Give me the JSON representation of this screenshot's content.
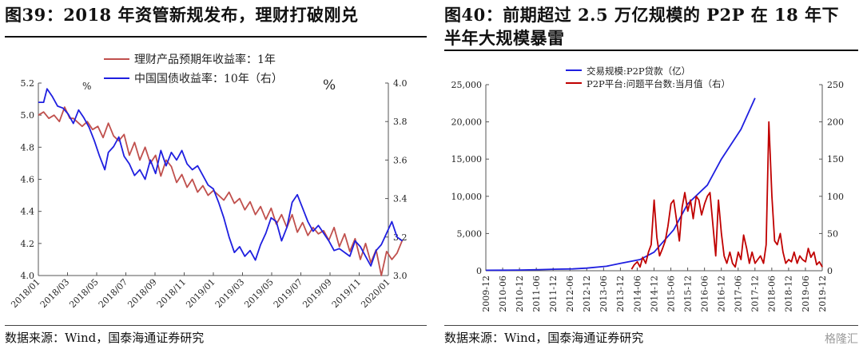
{
  "left": {
    "title": "图39：2018 年资管新规发布，理财打破刚兑",
    "source": "数据来源：Wind，国泰海通证券研究",
    "chart_data": {
      "type": "line",
      "x_tick_labels": [
        "2018/01",
        "2018/03",
        "2018/05",
        "2018/07",
        "2018/09",
        "2018/11",
        "2019/01",
        "2019/03",
        "2019/05",
        "2019/07",
        "2019/09",
        "2019/11",
        "2020/01"
      ],
      "y_left_ticks": [
        "4.0",
        "4.2",
        "4.4",
        "4.6",
        "4.8",
        "5.0",
        "5.2"
      ],
      "y_right_ticks": [
        "3.0",
        "3.2",
        "3.4",
        "3.6",
        "3.8",
        "4.0"
      ],
      "ylim_left": [
        4.0,
        5.2
      ],
      "ylim_right": [
        3.0,
        4.0
      ],
      "unit_left": "%",
      "unit_right": "%",
      "grid": false,
      "legend_position": "top-center",
      "series": [
        {
          "name": "理财产品预期年收益率：1年",
          "axis": "left",
          "color": "#c0504d",
          "x": [
            2018.0,
            2018.03,
            2018.06,
            2018.09,
            2018.12,
            2018.15,
            2018.18,
            2018.2,
            2018.22,
            2018.25,
            2018.28,
            2018.31,
            2018.34,
            2018.37,
            2018.4,
            2018.43,
            2018.46,
            2018.49,
            2018.52,
            2018.55,
            2018.58,
            2018.61,
            2018.64,
            2018.67,
            2018.7,
            2018.73,
            2018.76,
            2018.79,
            2018.82,
            2018.85,
            2018.88,
            2018.91,
            2018.94,
            2018.97,
            2019.0,
            2019.03,
            2019.06,
            2019.09,
            2019.12,
            2019.15,
            2019.18,
            2019.21,
            2019.24,
            2019.27,
            2019.3,
            2019.33,
            2019.36,
            2019.39,
            2019.42,
            2019.45,
            2019.48,
            2019.51,
            2019.54,
            2019.57,
            2019.6,
            2019.63,
            2019.66,
            2019.69,
            2019.72,
            2019.75,
            2019.78,
            2019.81,
            2019.84,
            2019.87,
            2019.9,
            2019.93,
            2019.96,
            2019.99,
            2020.02,
            2020.05,
            2020.08
          ],
          "values": [
            5.0,
            5.02,
            4.98,
            5.0,
            4.96,
            5.05,
            4.98,
            4.98,
            4.96,
            4.93,
            4.96,
            4.91,
            4.93,
            4.86,
            4.95,
            4.87,
            4.84,
            4.88,
            4.75,
            4.83,
            4.72,
            4.8,
            4.7,
            4.75,
            4.62,
            4.72,
            4.68,
            4.58,
            4.63,
            4.55,
            4.6,
            4.52,
            4.56,
            4.5,
            4.53,
            4.5,
            4.47,
            4.52,
            4.45,
            4.48,
            4.41,
            4.46,
            4.38,
            4.43,
            4.35,
            4.42,
            4.32,
            4.38,
            4.3,
            4.38,
            4.27,
            4.33,
            4.25,
            4.3,
            4.26,
            4.28,
            4.22,
            4.3,
            4.18,
            4.26,
            4.15,
            4.23,
            4.1,
            4.2,
            4.08,
            4.16,
            4.0,
            4.15,
            4.1,
            4.14,
            4.22
          ]
        },
        {
          "name": "中国国债收益率：10年（右）",
          "axis": "right",
          "color": "#1f1fe0",
          "x": [
            2018.0,
            2018.03,
            2018.05,
            2018.08,
            2018.11,
            2018.14,
            2018.17,
            2018.2,
            2018.23,
            2018.26,
            2018.29,
            2018.32,
            2018.35,
            2018.38,
            2018.4,
            2018.43,
            2018.46,
            2018.49,
            2018.52,
            2018.55,
            2018.58,
            2018.61,
            2018.64,
            2018.67,
            2018.7,
            2018.73,
            2018.76,
            2018.79,
            2018.82,
            2018.85,
            2018.88,
            2018.91,
            2018.94,
            2018.97,
            2019.0,
            2019.03,
            2019.06,
            2019.09,
            2019.12,
            2019.15,
            2019.18,
            2019.21,
            2019.24,
            2019.27,
            2019.3,
            2019.33,
            2019.36,
            2019.39,
            2019.42,
            2019.45,
            2019.48,
            2019.51,
            2019.54,
            2019.57,
            2019.6,
            2019.63,
            2019.66,
            2019.69,
            2019.72,
            2019.75,
            2019.78,
            2019.81,
            2019.84,
            2019.87,
            2019.9,
            2019.93,
            2019.96,
            2019.99,
            2020.02,
            2020.05,
            2020.08
          ],
          "values": [
            3.9,
            3.9,
            3.97,
            3.93,
            3.88,
            3.87,
            3.84,
            3.79,
            3.86,
            3.82,
            3.77,
            3.7,
            3.62,
            3.55,
            3.64,
            3.67,
            3.72,
            3.62,
            3.58,
            3.52,
            3.55,
            3.5,
            3.6,
            3.53,
            3.65,
            3.57,
            3.64,
            3.6,
            3.65,
            3.58,
            3.55,
            3.57,
            3.52,
            3.47,
            3.45,
            3.38,
            3.3,
            3.2,
            3.12,
            3.15,
            3.1,
            3.13,
            3.08,
            3.16,
            3.22,
            3.3,
            3.28,
            3.18,
            3.25,
            3.38,
            3.42,
            3.35,
            3.28,
            3.23,
            3.26,
            3.22,
            3.18,
            3.13,
            3.14,
            3.12,
            3.1,
            3.18,
            3.15,
            3.1,
            3.05,
            3.13,
            3.16,
            3.22,
            3.28,
            3.2,
            3.18
          ]
        }
      ]
    }
  },
  "right": {
    "title": "图40：前期超过 2.5 万亿规模的 P2P 在 18 年下半年大规模暴雷",
    "source": "数据来源：Wind，国泰海通证券研究",
    "watermark": "格隆汇",
    "chart_data": {
      "type": "line",
      "x_tick_labels": [
        "2009-12",
        "2010-06",
        "2010-12",
        "2011-06",
        "2011-12",
        "2012-06",
        "2012-12",
        "2013-06",
        "2013-12",
        "2014-06",
        "2014-12",
        "2015-06",
        "2015-12",
        "2016-06",
        "2016-12",
        "2017-06",
        "2017-12",
        "2018-06",
        "2018-12",
        "2019-06",
        "2019-12"
      ],
      "y_left_ticks": [
        "0",
        "5,000",
        "10,000",
        "15,000",
        "20,000",
        "25,000"
      ],
      "y_right_ticks": [
        "0",
        "50",
        "100",
        "150",
        "200",
        "250"
      ],
      "ylim_left": [
        0,
        25000
      ],
      "ylim_right": [
        0,
        250
      ],
      "grid": false,
      "legend_position": "top-left",
      "series": [
        {
          "name": "交易规模:P2P贷款（亿）",
          "axis": "left",
          "color": "#1f1fe0",
          "x": [
            2009.92,
            2010.5,
            2010.92,
            2011.5,
            2011.92,
            2012.5,
            2012.92,
            2013.5,
            2013.92,
            2014.5,
            2014.92,
            2015.5,
            2015.92,
            2016.5,
            2016.92,
            2017.5,
            2017.92
          ],
          "values": [
            60,
            80,
            100,
            150,
            200,
            250,
            350,
            600,
            1000,
            1500,
            2500,
            5500,
            9000,
            11500,
            15000,
            19000,
            23200
          ]
        },
        {
          "name": "P2P平台:问题平台数:当月值（右）",
          "axis": "right",
          "color": "#c00000",
          "x": [
            2014.25,
            2014.33,
            2014.42,
            2014.5,
            2014.58,
            2014.67,
            2014.75,
            2014.83,
            2014.92,
            2015.0,
            2015.08,
            2015.17,
            2015.25,
            2015.33,
            2015.42,
            2015.5,
            2015.58,
            2015.67,
            2015.75,
            2015.83,
            2015.92,
            2016.0,
            2016.08,
            2016.17,
            2016.25,
            2016.33,
            2016.42,
            2016.5,
            2016.58,
            2016.67,
            2016.75,
            2016.83,
            2016.92,
            2017.0,
            2017.08,
            2017.17,
            2017.25,
            2017.33,
            2017.42,
            2017.5,
            2017.58,
            2017.67,
            2017.75,
            2017.83,
            2017.92,
            2018.0,
            2018.08,
            2018.17,
            2018.25,
            2018.33,
            2018.42,
            2018.5,
            2018.58,
            2018.67,
            2018.75,
            2018.83,
            2018.92,
            2019.0,
            2019.08,
            2019.17,
            2019.25,
            2019.33,
            2019.42,
            2019.5,
            2019.58,
            2019.67,
            2019.75,
            2019.83,
            2019.92
          ],
          "values": [
            2,
            8,
            12,
            5,
            18,
            10,
            25,
            35,
            95,
            45,
            20,
            30,
            40,
            60,
            90,
            95,
            70,
            40,
            85,
            105,
            80,
            95,
            70,
            100,
            95,
            75,
            90,
            100,
            105,
            60,
            20,
            95,
            50,
            20,
            10,
            25,
            10,
            5,
            25,
            15,
            48,
            30,
            10,
            25,
            10,
            15,
            20,
            10,
            35,
            200,
            100,
            40,
            35,
            50,
            25,
            10,
            15,
            12,
            25,
            10,
            20,
            15,
            12,
            30,
            18,
            25,
            8,
            12,
            5
          ]
        }
      ]
    }
  }
}
